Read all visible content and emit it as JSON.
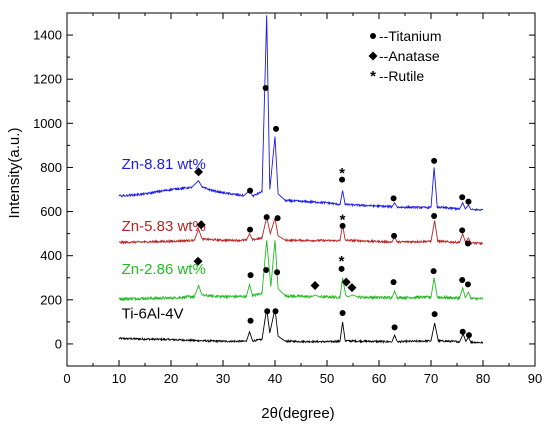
{
  "chart_data": {
    "type": "line",
    "xlabel": "2θ(degree)",
    "ylabel": "Intensity(a.u.)",
    "xlim": [
      0,
      90
    ],
    "ylim": [
      -100,
      1500
    ],
    "xticks": [
      0,
      10,
      20,
      30,
      40,
      50,
      60,
      70,
      80,
      90
    ],
    "yticks": [
      0,
      200,
      400,
      600,
      800,
      1000,
      1200,
      1400
    ],
    "grid": false,
    "legend": {
      "position": "top-right",
      "entries": [
        {
          "marker": "circle",
          "label": "--Titanium"
        },
        {
          "marker": "diamond",
          "label": "--Anatase"
        },
        {
          "marker": "asterisk",
          "label": "--Rutile"
        }
      ]
    },
    "series": [
      {
        "name": "Ti-6Al-4V",
        "color": "#000000",
        "label_x": 10.5,
        "label_y": 115,
        "noise": 8,
        "points": [
          [
            10,
            25
          ],
          [
            15,
            22
          ],
          [
            20,
            20
          ],
          [
            25,
            15
          ],
          [
            30,
            12
          ],
          [
            34.5,
            12
          ],
          [
            35.1,
            55
          ],
          [
            35.7,
            14
          ],
          [
            37.5,
            20
          ],
          [
            38.4,
            160
          ],
          [
            39.0,
            50
          ],
          [
            40.0,
            160
          ],
          [
            40.6,
            35
          ],
          [
            42,
            12
          ],
          [
            50,
            10
          ],
          [
            52.5,
            12
          ],
          [
            53.0,
            100
          ],
          [
            53.5,
            14
          ],
          [
            62.5,
            10
          ],
          [
            63.0,
            40
          ],
          [
            63.5,
            10
          ],
          [
            70,
            14
          ],
          [
            70.7,
            95
          ],
          [
            71.4,
            14
          ],
          [
            75.5,
            10
          ],
          [
            76.2,
            45
          ],
          [
            76.7,
            12
          ],
          [
            77.2,
            30
          ],
          [
            77.7,
            8
          ],
          [
            80,
            6
          ]
        ]
      },
      {
        "name": "Zn-2.86 wt%",
        "color": "#22bb22",
        "label_x": 10.5,
        "label_y": 318,
        "noise": 12,
        "points": [
          [
            10,
            205
          ],
          [
            20,
            208
          ],
          [
            24.5,
            215
          ],
          [
            25.3,
            265
          ],
          [
            26,
            220
          ],
          [
            30,
            215
          ],
          [
            34.5,
            215
          ],
          [
            35.1,
            270
          ],
          [
            35.7,
            218
          ],
          [
            37.5,
            230
          ],
          [
            38.4,
            470
          ],
          [
            39.2,
            260
          ],
          [
            40.0,
            470
          ],
          [
            40.6,
            250
          ],
          [
            42,
            218
          ],
          [
            47,
            214
          ],
          [
            47.8,
            222
          ],
          [
            48.5,
            214
          ],
          [
            52.5,
            212
          ],
          [
            53.0,
            300
          ],
          [
            53.6,
            220
          ],
          [
            54,
            214
          ],
          [
            55,
            222
          ],
          [
            56,
            212
          ],
          [
            62.5,
            210
          ],
          [
            63.0,
            240
          ],
          [
            63.5,
            210
          ],
          [
            70,
            212
          ],
          [
            70.6,
            300
          ],
          [
            71.2,
            212
          ],
          [
            75.5,
            208
          ],
          [
            76.1,
            255
          ],
          [
            76.6,
            210
          ],
          [
            77.2,
            235
          ],
          [
            77.7,
            206
          ],
          [
            80,
            205
          ]
        ]
      },
      {
        "name": "Zn-5.83 wt%",
        "color": "#bb2222",
        "label_x": 10.5,
        "label_y": 512,
        "noise": 9,
        "points": [
          [
            10,
            460
          ],
          [
            20,
            465
          ],
          [
            24.5,
            470
          ],
          [
            25.3,
            520
          ],
          [
            26,
            475
          ],
          [
            30,
            470
          ],
          [
            34.5,
            470
          ],
          [
            35.1,
            500
          ],
          [
            35.7,
            472
          ],
          [
            37.5,
            480
          ],
          [
            38.4,
            575
          ],
          [
            39.1,
            500
          ],
          [
            40.0,
            570
          ],
          [
            40.6,
            490
          ],
          [
            42,
            470
          ],
          [
            52.5,
            468
          ],
          [
            53.0,
            540
          ],
          [
            53.5,
            470
          ],
          [
            62.5,
            462
          ],
          [
            63.0,
            485
          ],
          [
            63.5,
            462
          ],
          [
            70,
            465
          ],
          [
            70.7,
            560
          ],
          [
            71.3,
            465
          ],
          [
            75.5,
            460
          ],
          [
            76.1,
            500
          ],
          [
            76.6,
            462
          ],
          [
            77.2,
            480
          ],
          [
            77.7,
            458
          ],
          [
            80,
            455
          ]
        ]
      },
      {
        "name": "Zn-8.81 wt%",
        "color": "#1a1aee",
        "label_x": 10.5,
        "label_y": 792,
        "noise": 9,
        "points": [
          [
            10,
            670
          ],
          [
            15,
            680
          ],
          [
            20,
            700
          ],
          [
            22,
            705
          ],
          [
            24,
            710
          ],
          [
            25.3,
            740
          ],
          [
            26,
            710
          ],
          [
            28,
            695
          ],
          [
            30,
            685
          ],
          [
            34,
            672
          ],
          [
            35.1,
            695
          ],
          [
            35.7,
            670
          ],
          [
            37.5,
            690
          ],
          [
            38.4,
            1490
          ],
          [
            39.0,
            700
          ],
          [
            40.0,
            940
          ],
          [
            40.6,
            680
          ],
          [
            42,
            650
          ],
          [
            46,
            645
          ],
          [
            50,
            640
          ],
          [
            52.5,
            632
          ],
          [
            53.0,
            695
          ],
          [
            53.5,
            632
          ],
          [
            62.5,
            622
          ],
          [
            63.0,
            640
          ],
          [
            63.5,
            620
          ],
          [
            70,
            618
          ],
          [
            70.6,
            800
          ],
          [
            71.2,
            620
          ],
          [
            75.5,
            612
          ],
          [
            76.1,
            640
          ],
          [
            76.6,
            612
          ],
          [
            77.2,
            630
          ],
          [
            77.7,
            608
          ],
          [
            80,
            608
          ]
        ]
      }
    ],
    "markers": [
      {
        "kind": "circle",
        "x": 35.3,
        "y": 105
      },
      {
        "kind": "circle",
        "x": 38.5,
        "y": 148
      },
      {
        "kind": "circle",
        "x": 40.1,
        "y": 148
      },
      {
        "kind": "circle",
        "x": 53.0,
        "y": 140
      },
      {
        "kind": "circle",
        "x": 63.0,
        "y": 75
      },
      {
        "kind": "circle",
        "x": 70.7,
        "y": 135
      },
      {
        "kind": "circle",
        "x": 76.1,
        "y": 55
      },
      {
        "kind": "circle",
        "x": 77.3,
        "y": 40
      },
      {
        "kind": "diamond",
        "x": 25.2,
        "y": 375
      },
      {
        "kind": "circle",
        "x": 35.3,
        "y": 312
      },
      {
        "kind": "circle",
        "x": 38.3,
        "y": 335
      },
      {
        "kind": "circle",
        "x": 40.4,
        "y": 325
      },
      {
        "kind": "diamond",
        "x": 47.7,
        "y": 265
      },
      {
        "kind": "asterisk",
        "x": 52.8,
        "y": 375
      },
      {
        "kind": "circle",
        "x": 52.8,
        "y": 340
      },
      {
        "kind": "diamond",
        "x": 53.7,
        "y": 280
      },
      {
        "kind": "diamond",
        "x": 54.8,
        "y": 255
      },
      {
        "kind": "circle",
        "x": 62.8,
        "y": 280
      },
      {
        "kind": "circle",
        "x": 70.5,
        "y": 330
      },
      {
        "kind": "circle",
        "x": 76.0,
        "y": 290
      },
      {
        "kind": "circle",
        "x": 77.1,
        "y": 270
      },
      {
        "kind": "diamond",
        "x": 25.8,
        "y": 540
      },
      {
        "kind": "circle",
        "x": 35.2,
        "y": 518
      },
      {
        "kind": "circle",
        "x": 38.4,
        "y": 575
      },
      {
        "kind": "circle",
        "x": 40.5,
        "y": 570
      },
      {
        "kind": "asterisk",
        "x": 53.0,
        "y": 565
      },
      {
        "kind": "circle",
        "x": 53.0,
        "y": 535
      },
      {
        "kind": "circle",
        "x": 62.9,
        "y": 490
      },
      {
        "kind": "circle",
        "x": 70.6,
        "y": 580
      },
      {
        "kind": "circle",
        "x": 76.0,
        "y": 515
      },
      {
        "kind": "circle",
        "x": 77.1,
        "y": 455
      },
      {
        "kind": "diamond",
        "x": 25.3,
        "y": 780
      },
      {
        "kind": "circle",
        "x": 35.2,
        "y": 695
      },
      {
        "kind": "circle",
        "x": 38.2,
        "y": 1160
      },
      {
        "kind": "circle",
        "x": 40.2,
        "y": 975
      },
      {
        "kind": "asterisk",
        "x": 52.9,
        "y": 775
      },
      {
        "kind": "circle",
        "x": 52.9,
        "y": 745
      },
      {
        "kind": "circle",
        "x": 62.8,
        "y": 660
      },
      {
        "kind": "circle",
        "x": 70.6,
        "y": 830
      },
      {
        "kind": "circle",
        "x": 76.0,
        "y": 665
      },
      {
        "kind": "circle",
        "x": 77.2,
        "y": 645
      }
    ]
  }
}
